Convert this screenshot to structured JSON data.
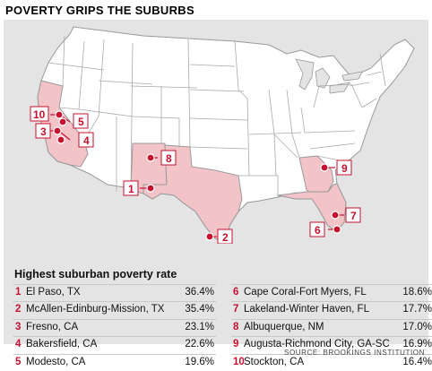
{
  "title": "POVERTY GRIPS THE SUBURBS",
  "table_title": "Highest suburban poverty rate",
  "source": "SOURCE: BROOKINGS INSTITUTION",
  "colors": {
    "highlight_state": "#f2c4c8",
    "accent": "#c8102e",
    "land": "#ffffff",
    "background": "#e4e4e4"
  },
  "rankings": [
    {
      "rank": "1",
      "name": "El Paso, TX",
      "rate": "36.4%"
    },
    {
      "rank": "2",
      "name": "McAllen-Edinburg-Mission, TX",
      "rate": "35.4%"
    },
    {
      "rank": "3",
      "name": "Fresno, CA",
      "rate": "23.1%"
    },
    {
      "rank": "4",
      "name": "Bakersfield, CA",
      "rate": "22.6%"
    },
    {
      "rank": "5",
      "name": "Modesto, CA",
      "rate": "19.6%"
    },
    {
      "rank": "6",
      "name": "Cape Coral-Fort Myers, FL",
      "rate": "18.6%"
    },
    {
      "rank": "7",
      "name": "Lakeland-Winter Haven, FL",
      "rate": "17.7%"
    },
    {
      "rank": "8",
      "name": "Albuquerque, NM",
      "rate": "17.0%"
    },
    {
      "rank": "9",
      "name": "Augusta-Richmond City, GA-SC",
      "rate": "16.9%"
    },
    {
      "rank": "10",
      "name": "Stockton, CA",
      "rate": "16.4%"
    }
  ],
  "highlighted_states": [
    "California",
    "New Mexico",
    "Texas",
    "Georgia",
    "Florida"
  ]
}
